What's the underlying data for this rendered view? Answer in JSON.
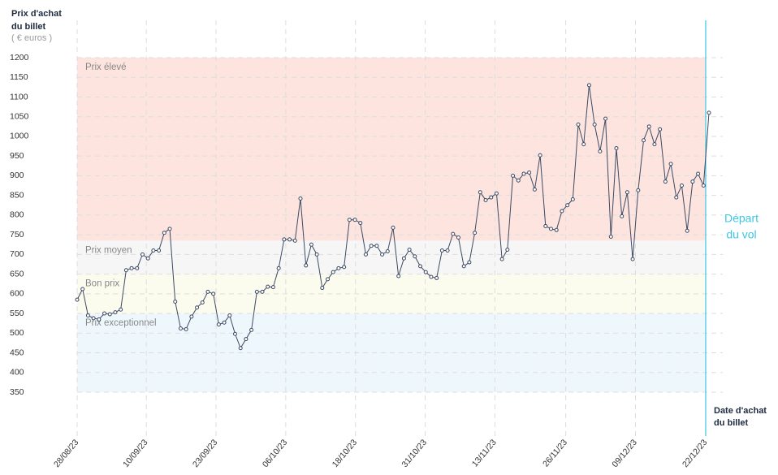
{
  "chart_data": {
    "type": "line",
    "y_label": [
      "Prix d'achat",
      "du billet"
    ],
    "y_unit": "( € euros )",
    "x_label": [
      "Date d'achat",
      "du billet"
    ],
    "annotation": {
      "lines": [
        "Départ",
        "du vol"
      ],
      "x": 115.4,
      "color": "#3fc6e0"
    },
    "bands": [
      {
        "label": "Prix élevé",
        "from": 735,
        "to": 1200,
        "color": "#fde4df"
      },
      {
        "label": "Prix moyen",
        "from": 650,
        "to": 735,
        "color": "#f6f6f6"
      },
      {
        "label": "Bon prix",
        "from": 550,
        "to": 650,
        "color": "#fbfbee"
      },
      {
        "label": "Prix exceptionnel",
        "from": 350,
        "to": 550,
        "color": "#eef8fc"
      }
    ],
    "x": [
      0,
      1,
      2,
      3,
      4,
      5,
      6,
      7,
      8,
      9,
      10,
      11,
      12,
      13,
      14,
      15,
      16,
      17,
      18,
      19,
      20,
      21,
      22,
      23,
      24,
      25,
      26,
      27,
      28,
      29,
      30,
      31,
      32,
      33,
      34,
      35,
      36,
      37,
      38,
      39,
      40,
      41,
      42,
      43,
      44,
      45,
      46,
      47,
      48,
      49,
      50,
      51,
      52,
      53,
      54,
      55,
      56,
      57,
      58,
      59,
      60,
      61,
      62,
      63,
      64,
      65,
      66,
      67,
      68,
      69,
      70,
      71,
      72,
      73,
      74,
      75,
      76,
      77,
      78,
      79,
      80,
      81,
      82,
      83,
      84,
      85,
      86,
      87,
      88,
      89,
      90,
      91,
      92,
      93,
      94,
      95,
      96,
      97,
      98,
      99,
      100,
      101,
      102,
      103,
      104,
      105,
      106,
      107,
      108,
      109,
      110,
      111,
      112,
      113,
      114,
      115,
      116
    ],
    "series": [
      {
        "color": "#3d4a63",
        "values": [
          585,
          612,
          545,
          538,
          535,
          550,
          548,
          553,
          560,
          660,
          665,
          665,
          700,
          690,
          710,
          710,
          755,
          765,
          580,
          512,
          510,
          542,
          565,
          578,
          605,
          600,
          522,
          527,
          545,
          498,
          462,
          485,
          508,
          605,
          605,
          618,
          617,
          665,
          738,
          738,
          735,
          842,
          672,
          725,
          700,
          615,
          637,
          655,
          665,
          668,
          788,
          788,
          780,
          700,
          722,
          722,
          700,
          708,
          768,
          645,
          690,
          712,
          695,
          670,
          655,
          643,
          640,
          710,
          710,
          752,
          743,
          670,
          680,
          755,
          858,
          838,
          845,
          855,
          688,
          712,
          900,
          888,
          905,
          908,
          865,
          952,
          772,
          765,
          762,
          810,
          825,
          840,
          1030,
          980,
          1130,
          1030,
          962,
          1045,
          745,
          970,
          797,
          858,
          688,
          863,
          990,
          1025,
          980,
          1018,
          885,
          930,
          845,
          875,
          760,
          885,
          905,
          875,
          1060
        ]
      }
    ],
    "xlim": [
      0,
      116
    ],
    "ylim": [
      350,
      1200
    ],
    "yticks": [
      350,
      400,
      450,
      500,
      550,
      600,
      650,
      700,
      750,
      800,
      850,
      900,
      950,
      1000,
      1050,
      1100,
      1150,
      1200
    ],
    "xticks": [
      {
        "value": 0,
        "label": "28/08/23"
      },
      {
        "value": 12.7,
        "label": "10/09/23"
      },
      {
        "value": 25.5,
        "label": "23/09/23"
      },
      {
        "value": 38.3,
        "label": "06/10/23"
      },
      {
        "value": 51.1,
        "label": "18/10/23"
      },
      {
        "value": 63.9,
        "label": "31/10/23"
      },
      {
        "value": 76.7,
        "label": "13/11/23"
      },
      {
        "value": 89.7,
        "label": "26/11/23"
      },
      {
        "value": 102.5,
        "label": "09/12/23"
      },
      {
        "value": 115.4,
        "label": "22/12/23"
      }
    ],
    "grid": true
  }
}
